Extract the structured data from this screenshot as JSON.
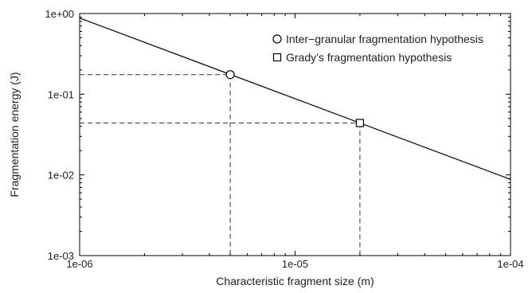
{
  "chart_data": {
    "type": "line",
    "xlabel": "Characteristic fragment size (m)",
    "ylabel": "Fragmentation energy (J)",
    "xscale": "log",
    "yscale": "log",
    "xlim": [
      1e-06,
      0.0001
    ],
    "ylim": [
      0.001,
      1
    ],
    "x_ticks": [
      {
        "value": 1e-06,
        "label": "1e-06"
      },
      {
        "value": 1e-05,
        "label": "1e-05"
      },
      {
        "value": 0.0001,
        "label": "1e-04"
      }
    ],
    "y_ticks": [
      {
        "value": 0.001,
        "label": "1e-03"
      },
      {
        "value": 0.01,
        "label": "1e-02"
      },
      {
        "value": 0.1,
        "label": "1e-01"
      },
      {
        "value": 1,
        "label": "1e+00"
      }
    ],
    "grid": false,
    "legend_position": "top-right",
    "series": [
      {
        "kind": "line",
        "x": [
          1e-06,
          0.0001
        ],
        "y": [
          0.88,
          0.0088
        ]
      }
    ],
    "points": [
      {
        "name": "Inter−granular fragmentation hypothesis",
        "marker": "circle",
        "x": 5e-06,
        "y": 0.175
      },
      {
        "name": "Grady’s fragmentation hypothesis",
        "marker": "square",
        "x": 2e-05,
        "y": 0.044
      }
    ],
    "colors": {
      "line": "#000000",
      "guide": "#333333",
      "axis": "#000000"
    }
  }
}
